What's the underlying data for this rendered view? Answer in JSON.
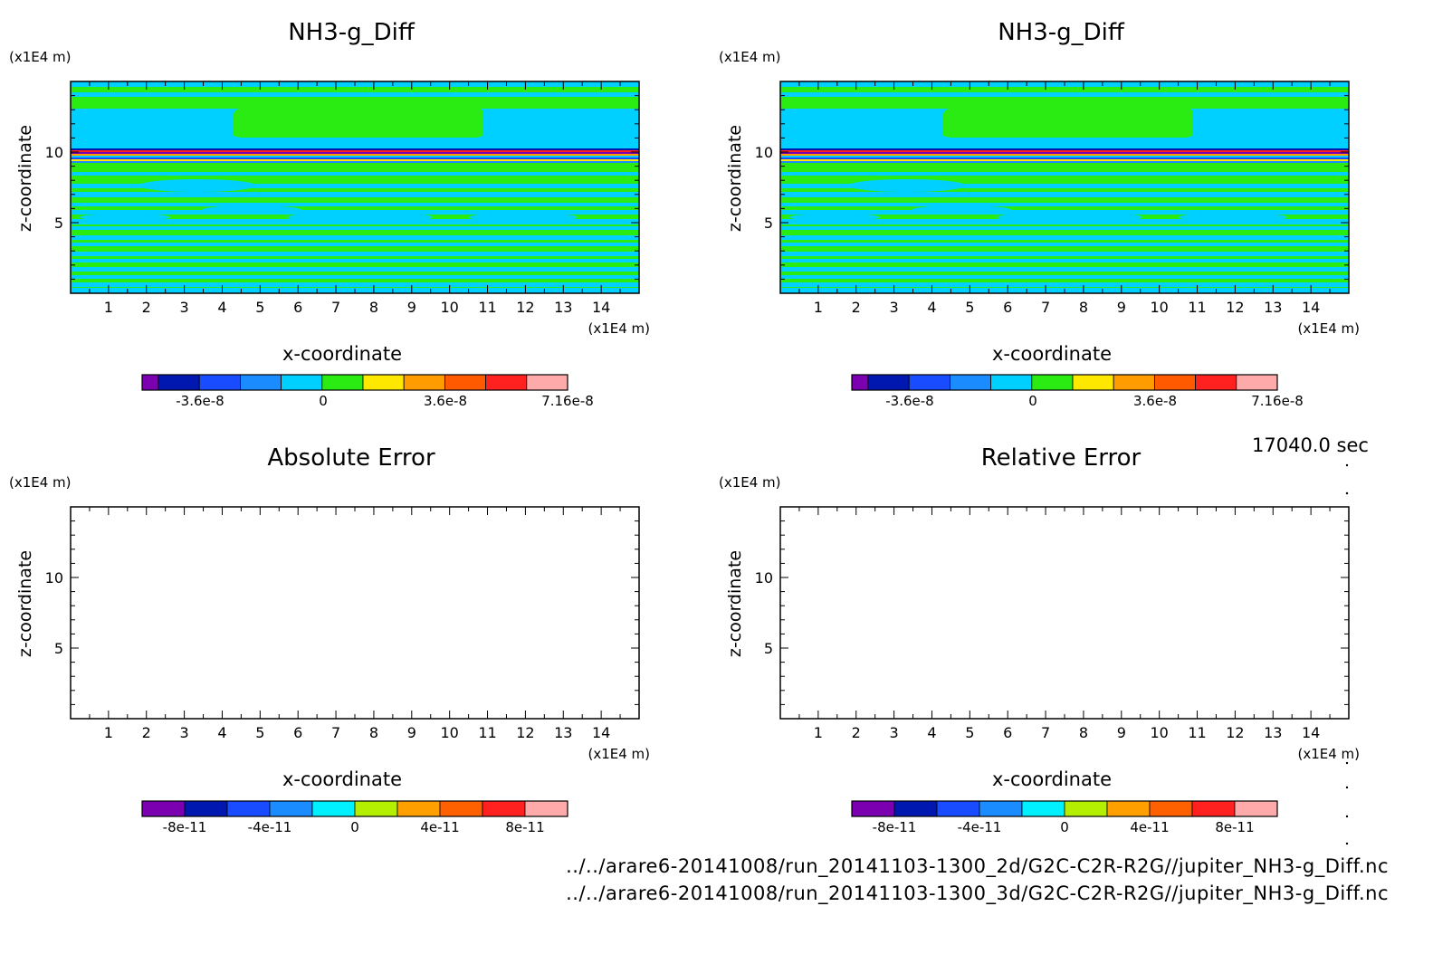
{
  "figure": {
    "time_label": "17040.0 sec",
    "footer_lines": [
      "../../arare6-20141008/run_20141103-1300_2d/G2C-C2R-R2G//jupiter_NH3-g_Diff.nc",
      "../../arare6-20141008/run_20141103-1300_3d/G2C-C2R-R2G//jupiter_NH3-g_Diff.nc"
    ]
  },
  "chart_data": [
    {
      "type": "heatmap",
      "title": "NH3-g_Diff",
      "xlabel": "x-coordinate",
      "ylabel": "z-coordinate",
      "x_unit": "(x1E4 m)",
      "y_unit": "(x1E4 m)",
      "xlim": [
        0,
        15
      ],
      "ylim": [
        0,
        15
      ],
      "x_ticks": [
        "1",
        "2",
        "3",
        "4",
        "5",
        "6",
        "7",
        "8",
        "9",
        "10",
        "11",
        "12",
        "13",
        "14"
      ],
      "y_ticks": [
        "5",
        "10"
      ],
      "colorbar": {
        "colors": [
          "#7a00b0",
          "#0018b0",
          "#1a4cff",
          "#1a8cff",
          "#00d0ff",
          "#2aeb12",
          "#ffe800",
          "#ff9c00",
          "#ff5a00",
          "#ff2020",
          "#ffaaaa"
        ],
        "labels": [
          "-3.6e-8",
          "0",
          "3.6e-8",
          "7.16e-8"
        ]
      },
      "has_data": true
    },
    {
      "type": "heatmap",
      "title": "NH3-g_Diff",
      "xlabel": "x-coordinate",
      "ylabel": "z-coordinate",
      "x_unit": "(x1E4 m)",
      "y_unit": "(x1E4 m)",
      "xlim": [
        0,
        15
      ],
      "ylim": [
        0,
        15
      ],
      "x_ticks": [
        "1",
        "2",
        "3",
        "4",
        "5",
        "6",
        "7",
        "8",
        "9",
        "10",
        "11",
        "12",
        "13",
        "14"
      ],
      "y_ticks": [
        "5",
        "10"
      ],
      "colorbar": {
        "colors": [
          "#7a00b0",
          "#0018b0",
          "#1a4cff",
          "#1a8cff",
          "#00d0ff",
          "#2aeb12",
          "#ffe800",
          "#ff9c00",
          "#ff5a00",
          "#ff2020",
          "#ffaaaa"
        ],
        "labels": [
          "-3.6e-8",
          "0",
          "3.6e-8",
          "7.16e-8"
        ]
      },
      "has_data": true
    },
    {
      "type": "heatmap",
      "title": "Absolute Error",
      "xlabel": "x-coordinate",
      "ylabel": "z-coordinate",
      "x_unit": "(x1E4 m)",
      "y_unit": "(x1E4 m)",
      "xlim": [
        0,
        15
      ],
      "ylim": [
        0,
        15
      ],
      "x_ticks": [
        "1",
        "2",
        "3",
        "4",
        "5",
        "6",
        "7",
        "8",
        "9",
        "10",
        "11",
        "12",
        "13",
        "14"
      ],
      "y_ticks": [
        "5",
        "10"
      ],
      "colorbar": {
        "colors": [
          "#7a00b0",
          "#0018b0",
          "#1a4cff",
          "#1a8cff",
          "#00f0ff",
          "#b4ee00",
          "#ffa000",
          "#ff6000",
          "#ff2020",
          "#ffaaaa"
        ],
        "labels": [
          "-8e-11",
          "-4e-11",
          "0",
          "4e-11",
          "8e-11"
        ]
      },
      "has_data": false
    },
    {
      "type": "heatmap",
      "title": "Relative Error",
      "xlabel": "x-coordinate",
      "ylabel": "z-coordinate",
      "x_unit": "(x1E4 m)",
      "y_unit": "(x1E4 m)",
      "xlim": [
        0,
        15
      ],
      "ylim": [
        0,
        15
      ],
      "x_ticks": [
        "1",
        "2",
        "3",
        "4",
        "5",
        "6",
        "7",
        "8",
        "9",
        "10",
        "11",
        "12",
        "13",
        "14"
      ],
      "y_ticks": [
        "5",
        "10"
      ],
      "colorbar": {
        "colors": [
          "#7a00b0",
          "#0018b0",
          "#1a4cff",
          "#1a8cff",
          "#00f0ff",
          "#b4ee00",
          "#ffa000",
          "#ff6000",
          "#ff2020",
          "#ffaaaa"
        ],
        "labels": [
          "-8e-11",
          "-4e-11",
          "0",
          "4e-11",
          "8e-11"
        ]
      },
      "has_data": false
    }
  ]
}
